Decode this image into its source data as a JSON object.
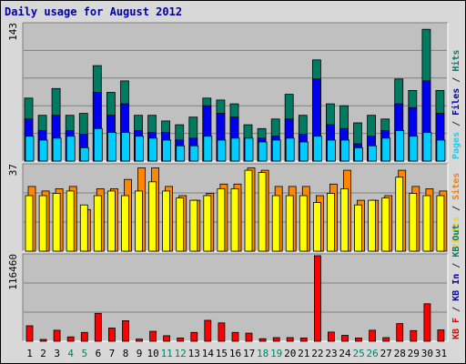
{
  "chart_data": {
    "title": "Daily usage for August 2012",
    "type": "bar",
    "x": [
      "1",
      "2",
      "3",
      "4",
      "5",
      "6",
      "7",
      "8",
      "9",
      "10",
      "11",
      "12",
      "13",
      "14",
      "15",
      "16",
      "17",
      "18",
      "19",
      "20",
      "21",
      "22",
      "23",
      "24",
      "25",
      "26",
      "27",
      "28",
      "29",
      "30",
      "31"
    ],
    "weekend_days": [
      "4",
      "5",
      "11",
      "12",
      "18",
      "19",
      "25",
      "26"
    ],
    "panels": [
      {
        "name": "pages_files_hits",
        "max_label": "143",
        "ymax": 143,
        "legend": [
          {
            "text": "Pages",
            "color": "#00d8f8"
          },
          {
            "text": " / ",
            "color": "#303030"
          },
          {
            "text": "Files",
            "color": "#0000c8"
          },
          {
            "text": " / ",
            "color": "#303030"
          },
          {
            "text": "Hits",
            "color": "#00806a"
          }
        ],
        "series": [
          {
            "name": "Hits",
            "color": "#007a60",
            "values": [
              66,
              48,
              76,
              48,
              50,
              100,
              72,
              84,
              48,
              48,
              42,
              38,
              46,
              66,
              64,
              60,
              38,
              34,
              44,
              70,
              48,
              106,
              60,
              58,
              40,
              48,
              44,
              86,
              74,
              138,
              74
            ]
          },
          {
            "name": "Files",
            "color": "#0000f0",
            "values": [
              44,
              32,
              48,
              32,
              28,
              72,
              48,
              60,
              32,
              30,
              30,
              22,
              24,
              58,
              50,
              46,
              24,
              24,
              26,
              44,
              28,
              86,
              38,
              34,
              18,
              26,
              32,
              60,
              56,
              84,
              50
            ]
          },
          {
            "name": "Pages",
            "color": "#00ccff",
            "values": [
              26,
              22,
              24,
              26,
              14,
              34,
              30,
              30,
              26,
              24,
              22,
              16,
              16,
              26,
              22,
              24,
              24,
              20,
              22,
              24,
              20,
              26,
              22,
              22,
              14,
              16,
              24,
              32,
              26,
              30,
              22
            ]
          }
        ]
      },
      {
        "name": "visits_sites",
        "max_label": "37",
        "ymax": 37,
        "legend": [
          {
            "text": "Visits",
            "color": "#e8d800"
          },
          {
            "text": " / ",
            "color": "#303030"
          },
          {
            "text": "Sites",
            "color": "#f08000"
          }
        ],
        "series": [
          {
            "name": "Sites",
            "color": "#ff8800",
            "values": [
              28,
              26,
              27,
              28,
              18,
              27,
              27,
              31,
              36,
              36,
              28,
              24,
              22,
              25,
              29,
              29,
              36,
              35,
              28,
              28,
              28,
              24,
              29,
              35,
              22,
              22,
              24,
              35,
              28,
              27,
              26
            ]
          },
          {
            "name": "Visits",
            "color": "#ffff00",
            "values": [
              24,
              24,
              25,
              26,
              20,
              24,
              26,
              24,
              26,
              30,
              26,
              23,
              22,
              24,
              27,
              27,
              35,
              34,
              24,
              24,
              24,
              21,
              25,
              27,
              20,
              22,
              23,
              32,
              25,
              24,
              24
            ]
          }
        ]
      },
      {
        "name": "kbf_kbin_kbout",
        "max_label": "116460",
        "ymax": 116460,
        "legend": [
          {
            "text": "KB F",
            "color": "#f00000"
          },
          {
            "text": " / ",
            "color": "#303030"
          },
          {
            "text": "KB In",
            "color": "#0000c8"
          },
          {
            "text": " / ",
            "color": "#303030"
          },
          {
            "text": "KB Out",
            "color": "#00806a"
          }
        ],
        "series": [
          {
            "name": "KB F",
            "color": "#ff0000",
            "values": [
              21000,
              2500,
              15000,
              6000,
              12000,
              38000,
              18000,
              28000,
              3000,
              13500,
              7500,
              4500,
              12000,
              28500,
              25000,
              12000,
              11000,
              3500,
              5000,
              5000,
              4500,
              116460,
              12500,
              8000,
              4500,
              15000,
              5000,
              24000,
              14500,
              51000,
              15500
            ]
          }
        ]
      }
    ]
  }
}
